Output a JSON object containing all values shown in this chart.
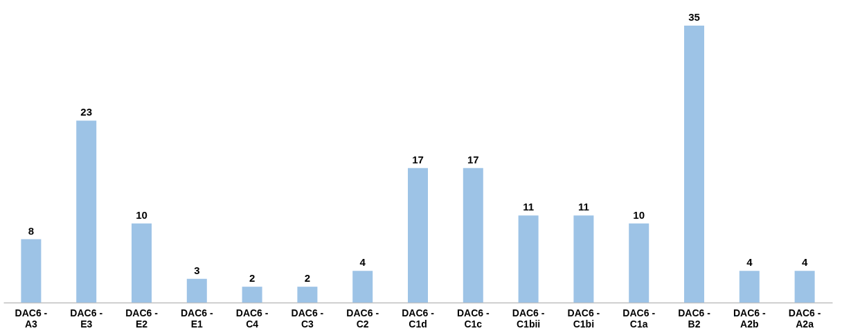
{
  "chart_data": {
    "type": "bar",
    "categories": [
      "DAC6 - A3",
      "DAC6 - E3",
      "DAC6 - E2",
      "DAC6 - E1",
      "DAC6 - C4",
      "DAC6 - C3",
      "DAC6 - C2",
      "DAC6 - C1d",
      "DAC6 - C1c",
      "DAC6 - C1bii",
      "DAC6 - C1bi",
      "DAC6 - C1a",
      "DAC6 - B2",
      "DAC6 - A2b",
      "DAC6 - A2a"
    ],
    "values": [
      8,
      23,
      10,
      3,
      2,
      2,
      4,
      17,
      17,
      11,
      11,
      10,
      35,
      4,
      4
    ],
    "color": "#9dc3e6",
    "data_labels": true
  }
}
